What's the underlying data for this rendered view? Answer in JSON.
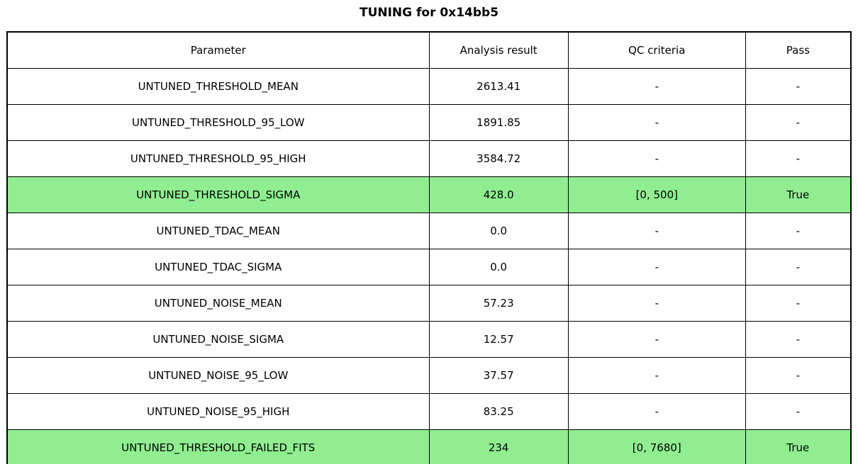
{
  "title": "TUNING for 0x14bb5",
  "table": {
    "highlight_color": "#90ee90",
    "headers": [
      "Parameter",
      "Analysis result",
      "QC criteria",
      "Pass"
    ],
    "rows": [
      {
        "param": "UNTUNED_THRESHOLD_MEAN",
        "result": "2613.41",
        "qc": "-",
        "pass": "-",
        "highlight": false
      },
      {
        "param": "UNTUNED_THRESHOLD_95_LOW",
        "result": "1891.85",
        "qc": "-",
        "pass": "-",
        "highlight": false
      },
      {
        "param": "UNTUNED_THRESHOLD_95_HIGH",
        "result": "3584.72",
        "qc": "-",
        "pass": "-",
        "highlight": false
      },
      {
        "param": "UNTUNED_THRESHOLD_SIGMA",
        "result": "428.0",
        "qc": "[0, 500]",
        "pass": "True",
        "highlight": true
      },
      {
        "param": "UNTUNED_TDAC_MEAN",
        "result": "0.0",
        "qc": "-",
        "pass": "-",
        "highlight": false
      },
      {
        "param": "UNTUNED_TDAC_SIGMA",
        "result": "0.0",
        "qc": "-",
        "pass": "-",
        "highlight": false
      },
      {
        "param": "UNTUNED_NOISE_MEAN",
        "result": "57.23",
        "qc": "-",
        "pass": "-",
        "highlight": false
      },
      {
        "param": "UNTUNED_NOISE_SIGMA",
        "result": "12.57",
        "qc": "-",
        "pass": "-",
        "highlight": false
      },
      {
        "param": "UNTUNED_NOISE_95_LOW",
        "result": "37.57",
        "qc": "-",
        "pass": "-",
        "highlight": false
      },
      {
        "param": "UNTUNED_NOISE_95_HIGH",
        "result": "83.25",
        "qc": "-",
        "pass": "-",
        "highlight": false
      },
      {
        "param": "UNTUNED_THRESHOLD_FAILED_FITS",
        "result": "234",
        "qc": "[0, 7680]",
        "pass": "True",
        "highlight": true
      }
    ]
  },
  "chart_data": {
    "type": "table",
    "title": "TUNING for 0x14bb5",
    "columns": [
      "Parameter",
      "Analysis result",
      "QC criteria",
      "Pass"
    ],
    "cells": [
      [
        "UNTUNED_THRESHOLD_MEAN",
        "2613.41",
        "-",
        "-"
      ],
      [
        "UNTUNED_THRESHOLD_95_LOW",
        "1891.85",
        "-",
        "-"
      ],
      [
        "UNTUNED_THRESHOLD_95_HIGH",
        "3584.72",
        "-",
        "-"
      ],
      [
        "UNTUNED_THRESHOLD_SIGMA",
        "428.0",
        "[0, 500]",
        "True"
      ],
      [
        "UNTUNED_TDAC_MEAN",
        "0.0",
        "-",
        "-"
      ],
      [
        "UNTUNED_TDAC_SIGMA",
        "0.0",
        "-",
        "-"
      ],
      [
        "UNTUNED_NOISE_MEAN",
        "57.23",
        "-",
        "-"
      ],
      [
        "UNTUNED_NOISE_SIGMA",
        "12.57",
        "-",
        "-"
      ],
      [
        "UNTUNED_NOISE_95_LOW",
        "37.57",
        "-",
        "-"
      ],
      [
        "UNTUNED_NOISE_95_HIGH",
        "83.25",
        "-",
        "-"
      ],
      [
        "UNTUNED_THRESHOLD_FAILED_FITS",
        "234",
        "[0, 7680]",
        "True"
      ]
    ],
    "highlighted_rows": [
      3,
      10
    ],
    "highlight_color": "#90ee90"
  }
}
